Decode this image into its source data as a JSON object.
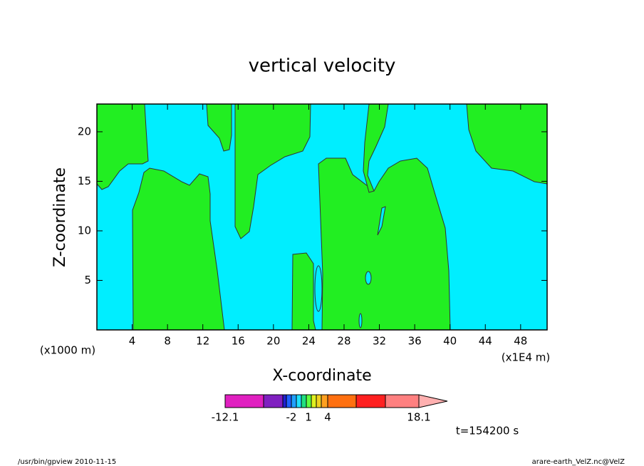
{
  "chart_data": {
    "type": "contour",
    "title": "vertical velocity",
    "x_label": "X-coordinate",
    "y_label": "Z-coordinate",
    "x_unit": "(x1E4 m)",
    "y_unit": "(x1000 m)",
    "xlim": [
      0,
      51
    ],
    "ylim": [
      0,
      22.8
    ],
    "xticks": [
      4,
      8,
      12,
      16,
      20,
      24,
      28,
      32,
      36,
      40,
      44,
      48
    ],
    "yticks": [
      5,
      10,
      15,
      20
    ],
    "colorbar": {
      "colors": [
        "#e020c0",
        "#8020c0",
        "#2020d0",
        "#2060ff",
        "#20a0ff",
        "#20e0ff",
        "#20e080",
        "#60ff40",
        "#e0f020",
        "#f0d020",
        "#ffa020",
        "#ff7010",
        "#ff2020",
        "#ff8080",
        "#ffb0b0"
      ],
      "labels": [
        -12.1,
        -2,
        1,
        4,
        18.1
      ]
    },
    "time_label": "t=154200 s",
    "footer_left": "/usr/bin/gpview  2010-11-15",
    "footer_right": "arare-earth_VelZ.nc@VelZ"
  }
}
